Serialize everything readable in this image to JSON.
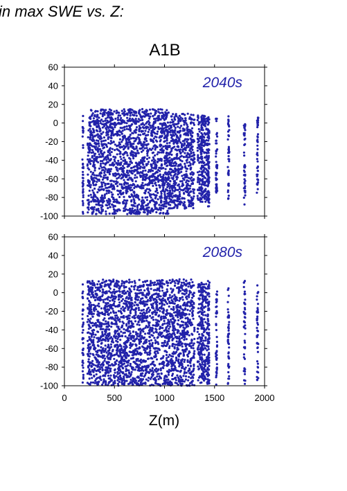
{
  "header": {
    "text": "in max SWE vs. Z:"
  },
  "chart_data": {
    "type": "scatter",
    "title": "A1B",
    "xlabel": "Z(m)",
    "ylabel": "",
    "xlim": [
      0,
      2000
    ],
    "ylim": [
      -100,
      60
    ],
    "x_ticks": [
      "0",
      "500",
      "1000",
      "1500",
      "2000"
    ],
    "y_ticks": [
      "60",
      "40",
      "20",
      "0",
      "-20",
      "-40",
      "-60",
      "-80",
      "-100"
    ],
    "point_color": "#2222aa",
    "panels": [
      {
        "label": "2040s",
        "clusters": [
          {
            "x": [
              180,
              190
            ],
            "y": [
              -98,
              8
            ]
          },
          {
            "x": [
              230,
              1050
            ],
            "y": [
              -98,
              15
            ]
          },
          {
            "x": [
              1050,
              1300
            ],
            "y": [
              -92,
              10
            ]
          },
          {
            "x": [
              1330,
              1450
            ],
            "y": [
              -85,
              8
            ]
          }
        ],
        "columns": [
          {
            "x": 1375,
            "y": [
              -75,
              7
            ]
          },
          {
            "x": 1440,
            "y": [
              -90,
              8
            ]
          },
          {
            "x": 1520,
            "y": [
              -75,
              6
            ]
          },
          {
            "x": 1640,
            "y": [
              -82,
              8
            ]
          },
          {
            "x": 1800,
            "y": [
              -88,
              5
            ]
          },
          {
            "x": 1930,
            "y": [
              -85,
              8
            ]
          }
        ]
      },
      {
        "label": "2080s",
        "clusters": [
          {
            "x": [
              180,
              190
            ],
            "y": [
              -98,
              10
            ]
          },
          {
            "x": [
              230,
              1100
            ],
            "y": [
              -100,
              14
            ]
          },
          {
            "x": [
              1100,
              1300
            ],
            "y": [
              -100,
              15
            ]
          },
          {
            "x": [
              1330,
              1450
            ],
            "y": [
              -98,
              12
            ]
          }
        ],
        "columns": [
          {
            "x": 1375,
            "y": [
              -92,
              10
            ]
          },
          {
            "x": 1440,
            "y": [
              -98,
              13
            ]
          },
          {
            "x": 1520,
            "y": [
              -100,
              9
            ]
          },
          {
            "x": 1640,
            "y": [
              -98,
              7
            ]
          },
          {
            "x": 1800,
            "y": [
              -98,
              13
            ]
          },
          {
            "x": 1930,
            "y": [
              -97,
              10
            ]
          }
        ]
      }
    ]
  }
}
